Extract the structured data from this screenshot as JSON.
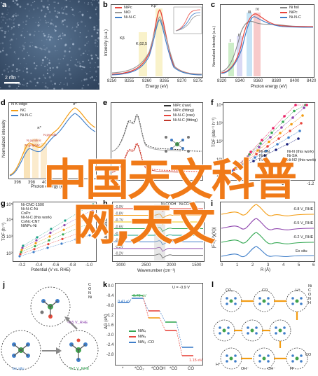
{
  "panel_labels": {
    "a": "a",
    "b": "b",
    "c": "c",
    "d": "d",
    "e": "e",
    "f": "f",
    "g": "g",
    "h": "h",
    "i": "i",
    "j": "j",
    "k": "k",
    "l": "l"
  },
  "panel_a": {
    "scale_bar": "2 nm"
  },
  "panel_b": {
    "legend": [
      "NiPc",
      "NiO",
      "Ni-N-C"
    ],
    "peak_labels": [
      "Kβ",
      "K β2,5",
      "Kβ″"
    ],
    "xlabel": "Energy (eV)",
    "ylabel": "Intensity (a.u.)",
    "xticks": [
      "8250",
      "8255",
      "8260",
      "8265",
      "8270",
      "8275"
    ],
    "inset_xlabel": "Energy (eV)"
  },
  "panel_c": {
    "legend": [
      "Ni foil",
      "NiPc",
      "Ni-N-C"
    ],
    "region_labels": [
      "I",
      "II",
      "III",
      "IV"
    ],
    "xlabel": "Photon energy (eV)",
    "ylabel": "Normalized intensity (a.u.)",
    "xticks": [
      "8320",
      "8340",
      "8360",
      "8380",
      "8400",
      "8420"
    ]
  },
  "panel_d": {
    "title": "N K-edge",
    "legend": [
      "NC",
      "Ni-N-C"
    ],
    "peak_labels": [
      "σ*",
      "π*",
      "N pyrrolic",
      "N pyridinic",
      "N graphitic"
    ],
    "ylabel": "Normalized intensity",
    "xticks": [
      "396",
      "398",
      "400"
    ],
    "xlabel": "Photon energy (eV)"
  },
  "panel_e": {
    "legend": [
      "NiPc (raw)",
      "NiPc (fitting)",
      "Ni-N-C (raw)",
      "Ni-N-C (fitting)"
    ]
  },
  "panel_f": {
    "ylabel": "TOF (site⁻¹ h⁻¹)",
    "yticks": [
      "10⁴",
      "10³",
      "10²",
      "10¹",
      "10⁰"
    ],
    "legend": [
      "Ni-CN",
      "Ni-N",
      "Fe-N",
      "Co-N",
      "Ni-N (this work)",
      "Ni-SA",
      "Ni-N2 (this work)"
    ],
    "xticks": [
      "-1.0",
      "-1.2"
    ],
    "xlabel": "Potential (V)"
  },
  "panel_g": {
    "legend": [
      "Ni-CNC-1500",
      "Ni-N-C-Ni",
      "CoPc",
      "Ni-N-C (this work)",
      "CoNc-CNT",
      "NiNPc-Ni"
    ],
    "ylabel": "TOF (h⁻¹)",
    "yticks": [
      "10⁵",
      "10⁴",
      "10³",
      "10²"
    ],
    "xticks": [
      "-0.2",
      "-0.4",
      "-0.6",
      "-0.8",
      "-1.0"
    ],
    "xlabel": "Potential (V vs. RHE)"
  },
  "panel_h": {
    "voltages": [
      "-0.9V",
      "-0.8V",
      "-0.7V",
      "-0.6V",
      "-0.5V",
      "-0.4V",
      "-0.3V",
      "-0.2V"
    ],
    "annotations": [
      "Ni-COOH",
      "Ni-CO"
    ],
    "ylabel": "Absorbance",
    "xticks": [
      "3000",
      "2500",
      "2000",
      "1500"
    ],
    "xlabel": "Wavenumber (cm⁻¹)"
  },
  "panel_i": {
    "curve_labels": [
      "-0.8 V_RHE",
      "-0.5 V_RHE",
      "-0.2 V_RHE",
      "Ex situ"
    ],
    "ylabel": "|FT(k³χ(k))|",
    "xticks": [
      "0",
      "1",
      "2",
      "3",
      "4",
      "5",
      "6"
    ],
    "xlabel": "R (Å)"
  },
  "panel_j": {
    "element_legend": [
      "C",
      "O",
      "N",
      "Ni"
    ],
    "labels": [
      "Ex situ",
      "-0.2 V_RHE",
      "-0.5 V_RHE"
    ]
  },
  "panel_k": {
    "title": "U = -0.9 V",
    "legend": [
      "NiN₄",
      "NiN₃",
      "NiN₃ -CO"
    ],
    "energies": [
      "0.41 eV",
      "0.72 eV",
      "1.15 eV"
    ],
    "xticks": [
      "*",
      "*CO₂",
      "*COOH",
      "*CO",
      "CO"
    ],
    "ylabel": "ΔG (eV)",
    "yticks": [
      "0.0",
      "-0.4",
      "-0.8",
      "-1.2",
      "-1.6",
      "-2.0",
      "-2.4",
      "-2.8"
    ]
  },
  "panel_l": {
    "element_legend": [
      "Ni",
      "C",
      "O",
      "N",
      "H"
    ],
    "species": [
      "CO₂",
      "CO",
      "H⁺",
      "H⁺",
      "OH⁻",
      "OH⁻",
      "H⁺",
      "CO"
    ]
  },
  "watermark": {
    "line1": "中国天文科普",
    "line2": "网,天文"
  },
  "colors": {
    "nipc": "#e8453c",
    "nio": "#9a9a9a",
    "ninc": "#3f7ec9",
    "accent": "#f07a18",
    "green": "#34a853",
    "orange": "#f39c12",
    "purple": "#8e44ad"
  }
}
